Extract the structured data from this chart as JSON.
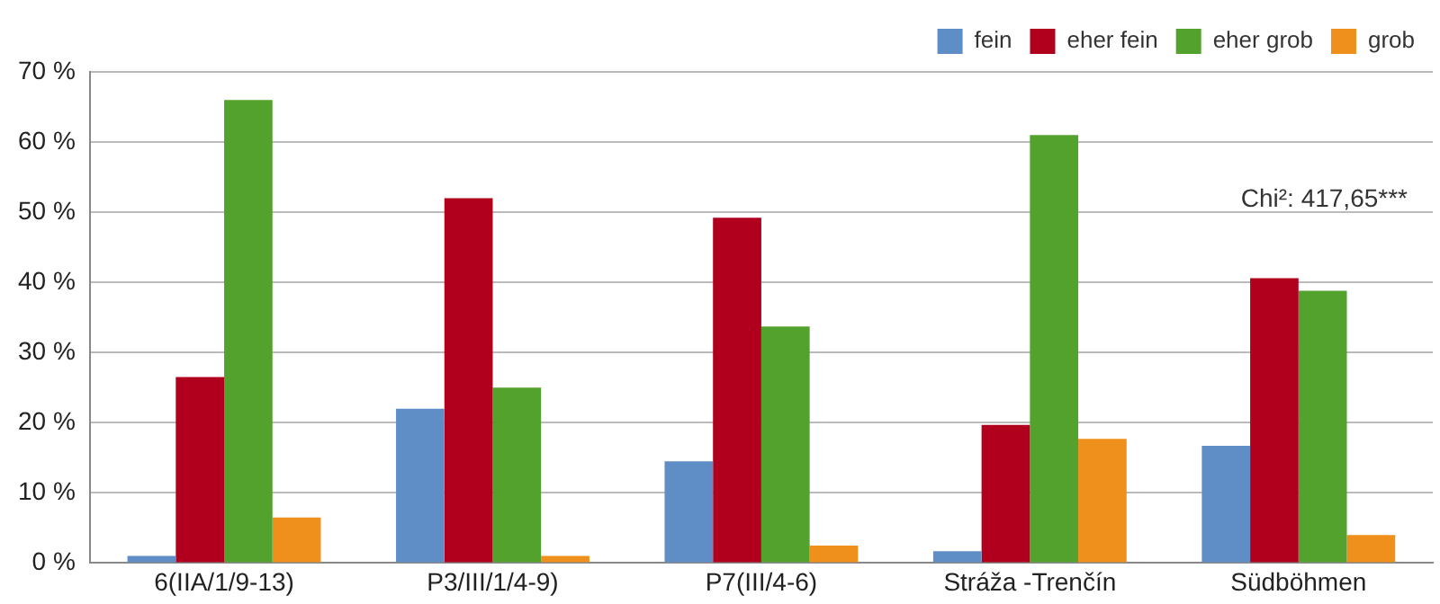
{
  "chart_data": {
    "type": "bar",
    "categories": [
      "6(IIA/1/9-13)",
      "P3/III/1/4-9)",
      "P7(III/4-6)",
      "Stráža -Trenčín",
      "Südböhmen"
    ],
    "series": [
      {
        "name": "fein",
        "color": "#5f8ec7",
        "values": [
          1,
          22,
          14.5,
          1.7,
          16.7
        ]
      },
      {
        "name": "eher fein",
        "color": "#b0001e",
        "values": [
          26.5,
          52,
          49.2,
          19.7,
          40.6
        ]
      },
      {
        "name": "eher grob",
        "color": "#54a22e",
        "values": [
          66,
          25,
          33.7,
          61,
          38.8
        ]
      },
      {
        "name": "grob",
        "color": "#f0901c",
        "values": [
          6.5,
          1,
          2.5,
          17.7,
          4
        ]
      }
    ],
    "ylim": [
      0,
      70
    ],
    "yticks": [
      {
        "value": 0,
        "label": "0 %"
      },
      {
        "value": 10,
        "label": "10 %"
      },
      {
        "value": 20,
        "label": "20 %"
      },
      {
        "value": 30,
        "label": "30 %"
      },
      {
        "value": 40,
        "label": "40 %"
      },
      {
        "value": 50,
        "label": "50 %"
      },
      {
        "value": 60,
        "label": "60 %"
      },
      {
        "value": 70,
        "label": "70 %"
      }
    ],
    "grid": "y",
    "legend": "top right",
    "annotations": [
      "Chi²: 417,65***"
    ]
  }
}
